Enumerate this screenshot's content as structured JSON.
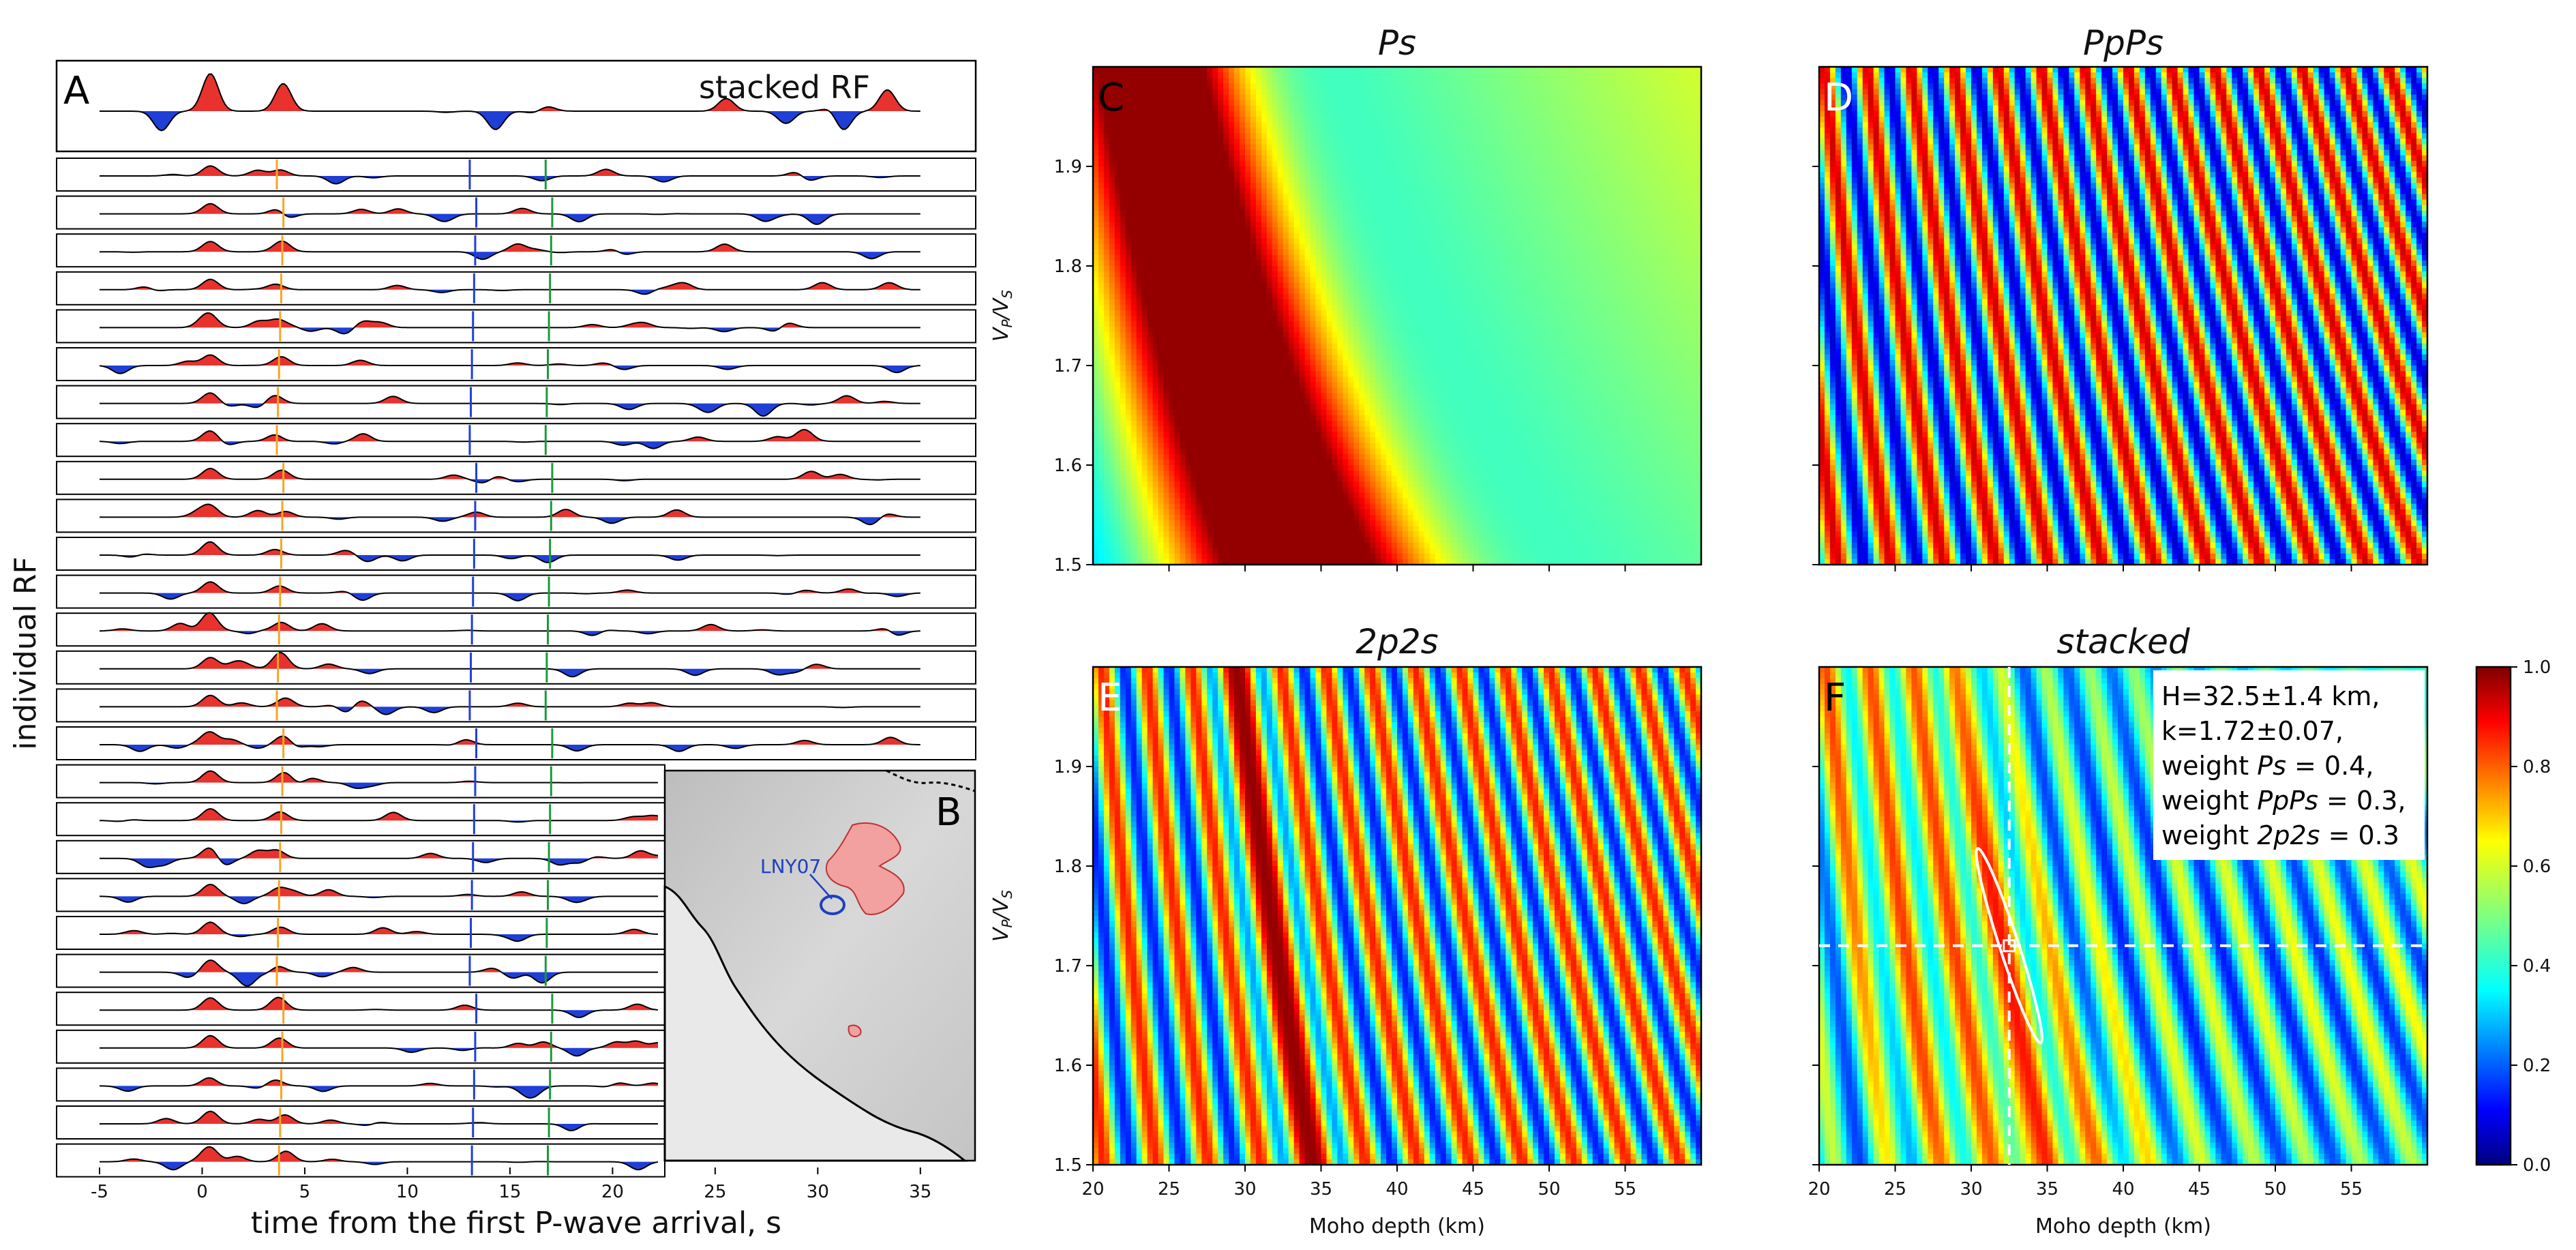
{
  "chart_data": [
    {
      "type": "line",
      "panel": "A",
      "title": "stacked RF",
      "xlabel": "time from the first P-wave arrival, s",
      "ylabel": "individual RF",
      "xlim": [
        -5,
        37
      ],
      "xticks": [
        "-5",
        "0",
        "5",
        "10",
        "15",
        "20",
        "25",
        "30",
        "35"
      ],
      "xtick_values": [
        -5,
        0,
        5,
        10,
        15,
        20,
        25,
        30,
        35
      ],
      "n_individual_traces": 27,
      "phase_markers": [
        {
          "name": "Ps",
          "time_s": 3.8,
          "color": "#f5a623"
        },
        {
          "name": "PpPs",
          "time_s": 13.2,
          "color": "#1f3fd6"
        },
        {
          "name": "2p2s",
          "time_s": 16.9,
          "color": "#1a9a3a"
        }
      ],
      "positive_fill": "#e8322e",
      "negative_fill": "#1f3fd6"
    },
    {
      "type": "other",
      "panel": "B",
      "label": "B",
      "station_label": "LNY07"
    },
    {
      "type": "heatmap",
      "panel": "C",
      "title": "Ps",
      "ylabel": "Vp/Vs",
      "ylim": [
        1.5,
        2.0
      ],
      "yticks": [
        "1.5",
        "1.6",
        "1.7",
        "1.8",
        "1.9"
      ],
      "ytick_values": [
        1.5,
        1.6,
        1.7,
        1.8,
        1.9
      ],
      "xlim": [
        20,
        60
      ],
      "xticks": [],
      "xtick_values": [
        25,
        30,
        35,
        40,
        45,
        50,
        55
      ]
    },
    {
      "type": "heatmap",
      "panel": "D",
      "title": "PpPs",
      "ylim": [
        1.5,
        2.0
      ],
      "ytick_values": [
        1.5,
        1.6,
        1.7,
        1.8,
        1.9
      ],
      "xlim": [
        20,
        60
      ],
      "xtick_values": [
        25,
        30,
        35,
        40,
        45,
        50,
        55
      ]
    },
    {
      "type": "heatmap",
      "panel": "E",
      "title": "2p2s",
      "ylabel": "Vp/Vs",
      "xlabel": "Moho depth (km)",
      "ylim": [
        1.5,
        2.0
      ],
      "yticks": [
        "1.5",
        "1.6",
        "1.7",
        "1.8",
        "1.9"
      ],
      "ytick_values": [
        1.5,
        1.6,
        1.7,
        1.8,
        1.9
      ],
      "xlim": [
        20,
        60
      ],
      "xticks": [
        "20",
        "25",
        "30",
        "35",
        "40",
        "45",
        "50",
        "55"
      ],
      "xtick_values": [
        20,
        25,
        30,
        35,
        40,
        45,
        50,
        55
      ]
    },
    {
      "type": "heatmap",
      "panel": "F",
      "title": "stacked",
      "xlabel": "Moho depth (km)",
      "ylim": [
        1.5,
        2.0
      ],
      "ytick_values": [
        1.5,
        1.6,
        1.7,
        1.8,
        1.9
      ],
      "xlim": [
        20,
        60
      ],
      "xticks": [
        "20",
        "25",
        "30",
        "35",
        "40",
        "45",
        "50",
        "55"
      ],
      "xtick_values": [
        20,
        25,
        30,
        35,
        40,
        45,
        50,
        55
      ],
      "best_H_km": 32.5,
      "best_k": 1.72,
      "annotation": [
        "H=32.5±1.4 km,",
        "k=1.72±0.07,",
        "weight Ps = 0.4,",
        "weight PpPs = 0.3,",
        "weight 2p2s = 0.3"
      ],
      "colorbar": {
        "range": [
          0.0,
          1.0
        ],
        "ticks": [
          "0.0",
          "0.2",
          "0.4",
          "0.6",
          "0.8",
          "1.0"
        ],
        "tick_values": [
          0,
          0.2,
          0.4,
          0.6,
          0.8,
          1.0
        ],
        "colormap": "jet"
      }
    }
  ],
  "text": {
    "label_a": "A",
    "label_b": "B",
    "label_c": "C",
    "label_d": "D",
    "label_e": "E",
    "label_f": "F",
    "title_c": "Ps",
    "title_d": "PpPs",
    "title_e": "2p2s",
    "title_f": "stacked",
    "stacked_rf": "stacked RF",
    "ylabel_a": "individual RF",
    "xlabel_a": "time from the first P-wave arrival, s",
    "ylabel_vpvs_main": "V",
    "ylabel_vpvs_sub1": "P",
    "ylabel_vpvs_slash": "/V",
    "ylabel_vpvs_sub2": "S",
    "xlabel_moho": "Moho depth (km)",
    "station": "LNY07",
    "ann_line1": "H=32.5±1.4 km,",
    "ann_line2": "k=1.72±0.07,",
    "ann_line3_pre": "weight ",
    "ann_line3_it": "Ps",
    "ann_line3_post": " = 0.4,",
    "ann_line4_pre": "weight ",
    "ann_line4_it": "PpPs",
    "ann_line4_post": " = 0.3,",
    "ann_line5_pre": "weight ",
    "ann_line5_it": "2p2s",
    "ann_line5_post": " = 0.3"
  }
}
